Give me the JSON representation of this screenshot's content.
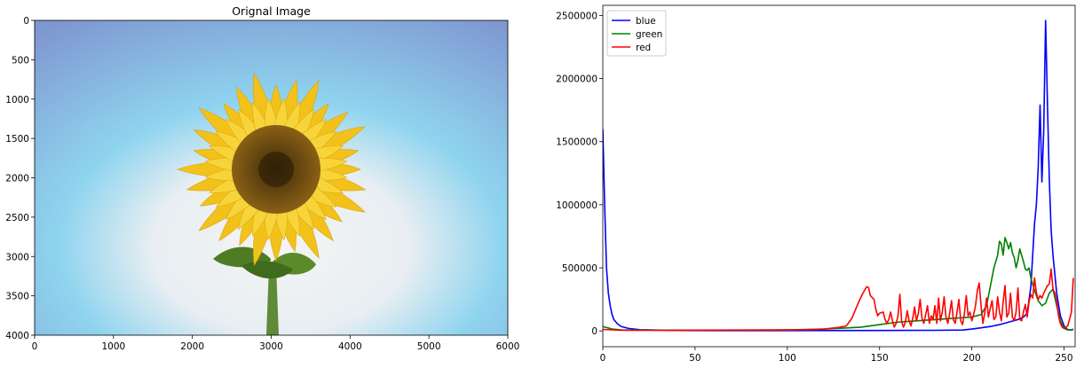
{
  "figure": {
    "background": "#ffffff"
  },
  "chart_data": [
    {
      "type": "image",
      "title": "Orignal Image",
      "xlabel": "",
      "ylabel": "",
      "xlim": [
        0,
        6000
      ],
      "ylim": [
        4000,
        0
      ],
      "x_ticks": [
        0,
        1000,
        2000,
        3000,
        4000,
        5000,
        6000
      ],
      "y_ticks": [
        0,
        500,
        1000,
        1500,
        2000,
        2500,
        3000,
        3500,
        4000
      ],
      "image_content": {
        "sky_top": "#7f97d0",
        "sky_mid": "#8fd4ef",
        "sky_bottom": "#f4f4f4",
        "petal_color": "#f2c21b",
        "disc_color": "#6b4a12",
        "leaf_color": "#5a8a2a"
      }
    },
    {
      "type": "line",
      "title": "",
      "xlabel": "",
      "ylabel": "",
      "xlim": [
        0,
        256
      ],
      "ylim": [
        -125000,
        2580000
      ],
      "x_ticks": [
        0,
        50,
        100,
        150,
        200,
        250
      ],
      "y_ticks": [
        0,
        500000,
        1000000,
        1500000,
        2000000,
        2500000
      ],
      "legend": {
        "placement": "top-left"
      },
      "series": [
        {
          "name": "blue",
          "color": "#0000ff",
          "points": [
            [
              0,
              1600000
            ],
            [
              1,
              1000000
            ],
            [
              2,
              500000
            ],
            [
              3,
              300000
            ],
            [
              4,
              200000
            ],
            [
              5,
              130000
            ],
            [
              6,
              90000
            ],
            [
              8,
              55000
            ],
            [
              10,
              35000
            ],
            [
              14,
              20000
            ],
            [
              20,
              10000
            ],
            [
              40,
              4000
            ],
            [
              60,
              3000
            ],
            [
              100,
              3000
            ],
            [
              150,
              4000
            ],
            [
              180,
              5000
            ],
            [
              195,
              7000
            ],
            [
              200,
              15000
            ],
            [
              205,
              25000
            ],
            [
              210,
              35000
            ],
            [
              215,
              50000
            ],
            [
              220,
              70000
            ],
            [
              225,
              90000
            ],
            [
              228,
              110000
            ],
            [
              230,
              140000
            ],
            [
              232,
              350000
            ],
            [
              233,
              600000
            ],
            [
              234,
              850000
            ],
            [
              235,
              1000000
            ],
            [
              236,
              1300000
            ],
            [
              237,
              1790000
            ],
            [
              238,
              1180000
            ],
            [
              239,
              1600000
            ],
            [
              240,
              2460000
            ],
            [
              241,
              1800000
            ],
            [
              242,
              1200000
            ],
            [
              243,
              800000
            ],
            [
              244,
              600000
            ],
            [
              246,
              300000
            ],
            [
              248,
              120000
            ],
            [
              250,
              40000
            ],
            [
              252,
              10000
            ],
            [
              254,
              8000
            ],
            [
              255,
              15000
            ]
          ]
        },
        {
          "name": "green",
          "color": "#008000",
          "points": [
            [
              0,
              35000
            ],
            [
              5,
              15000
            ],
            [
              10,
              8000
            ],
            [
              20,
              6000
            ],
            [
              50,
              6000
            ],
            [
              100,
              8000
            ],
            [
              120,
              15000
            ],
            [
              130,
              22000
            ],
            [
              140,
              30000
            ],
            [
              150,
              50000
            ],
            [
              160,
              70000
            ],
            [
              170,
              80000
            ],
            [
              180,
              90000
            ],
            [
              190,
              100000
            ],
            [
              200,
              110000
            ],
            [
              205,
              130000
            ],
            [
              208,
              200000
            ],
            [
              210,
              350000
            ],
            [
              212,
              500000
            ],
            [
              214,
              600000
            ],
            [
              215,
              710000
            ],
            [
              216,
              690000
            ],
            [
              217,
              600000
            ],
            [
              218,
              740000
            ],
            [
              219,
              700000
            ],
            [
              220,
              650000
            ],
            [
              221,
              700000
            ],
            [
              222,
              620000
            ],
            [
              223,
              580000
            ],
            [
              224,
              500000
            ],
            [
              225,
              560000
            ],
            [
              226,
              650000
            ],
            [
              227,
              600000
            ],
            [
              228,
              550000
            ],
            [
              229,
              490000
            ],
            [
              230,
              480000
            ],
            [
              231,
              500000
            ],
            [
              232,
              420000
            ],
            [
              234,
              320000
            ],
            [
              236,
              240000
            ],
            [
              238,
              200000
            ],
            [
              240,
              220000
            ],
            [
              242,
              300000
            ],
            [
              244,
              330000
            ],
            [
              246,
              200000
            ],
            [
              248,
              80000
            ],
            [
              250,
              20000
            ],
            [
              252,
              8000
            ],
            [
              255,
              10000
            ]
          ]
        },
        {
          "name": "red",
          "color": "#ff0000",
          "points": [
            [
              0,
              12000
            ],
            [
              10,
              5000
            ],
            [
              30,
              5000
            ],
            [
              60,
              6000
            ],
            [
              90,
              7000
            ],
            [
              110,
              10000
            ],
            [
              120,
              15000
            ],
            [
              128,
              28000
            ],
            [
              132,
              40000
            ],
            [
              135,
              100000
            ],
            [
              137,
              170000
            ],
            [
              139,
              240000
            ],
            [
              141,
              300000
            ],
            [
              143,
              350000
            ],
            [
              144,
              345000
            ],
            [
              145,
              280000
            ],
            [
              147,
              250000
            ],
            [
              148,
              170000
            ],
            [
              149,
              120000
            ],
            [
              150,
              140000
            ],
            [
              152,
              150000
            ],
            [
              153,
              90000
            ],
            [
              154,
              60000
            ],
            [
              155,
              90000
            ],
            [
              156,
              150000
            ],
            [
              157,
              80000
            ],
            [
              158,
              30000
            ],
            [
              159,
              60000
            ],
            [
              160,
              120000
            ],
            [
              161,
              290000
            ],
            [
              162,
              70000
            ],
            [
              163,
              30000
            ],
            [
              164,
              70000
            ],
            [
              165,
              160000
            ],
            [
              166,
              80000
            ],
            [
              167,
              40000
            ],
            [
              168,
              100000
            ],
            [
              169,
              190000
            ],
            [
              170,
              80000
            ],
            [
              171,
              140000
            ],
            [
              172,
              250000
            ],
            [
              173,
              100000
            ],
            [
              174,
              60000
            ],
            [
              175,
              130000
            ],
            [
              176,
              200000
            ],
            [
              177,
              60000
            ],
            [
              178,
              120000
            ],
            [
              179,
              90000
            ],
            [
              180,
              200000
            ],
            [
              181,
              60000
            ],
            [
              182,
              260000
            ],
            [
              183,
              80000
            ],
            [
              184,
              150000
            ],
            [
              185,
              270000
            ],
            [
              186,
              110000
            ],
            [
              187,
              60000
            ],
            [
              188,
              140000
            ],
            [
              189,
              240000
            ],
            [
              190,
              90000
            ],
            [
              191,
              60000
            ],
            [
              192,
              150000
            ],
            [
              193,
              250000
            ],
            [
              194,
              80000
            ],
            [
              195,
              50000
            ],
            [
              196,
              140000
            ],
            [
              197,
              280000
            ],
            [
              198,
              120000
            ],
            [
              199,
              150000
            ],
            [
              200,
              80000
            ],
            [
              201,
              130000
            ],
            [
              202,
              200000
            ],
            [
              203,
              320000
            ],
            [
              204,
              380000
            ],
            [
              205,
              200000
            ],
            [
              206,
              60000
            ],
            [
              207,
              140000
            ],
            [
              208,
              260000
            ],
            [
              209,
              110000
            ],
            [
              210,
              180000
            ],
            [
              211,
              240000
            ],
            [
              212,
              90000
            ],
            [
              213,
              110000
            ],
            [
              214,
              270000
            ],
            [
              215,
              150000
            ],
            [
              216,
              80000
            ],
            [
              217,
              230000
            ],
            [
              218,
              360000
            ],
            [
              219,
              110000
            ],
            [
              220,
              140000
            ],
            [
              221,
              300000
            ],
            [
              222,
              110000
            ],
            [
              223,
              80000
            ],
            [
              224,
              150000
            ],
            [
              225,
              340000
            ],
            [
              226,
              90000
            ],
            [
              227,
              80000
            ],
            [
              228,
              150000
            ],
            [
              229,
              210000
            ],
            [
              230,
              110000
            ],
            [
              231,
              230000
            ],
            [
              232,
              290000
            ],
            [
              233,
              260000
            ],
            [
              234,
              420000
            ],
            [
              235,
              300000
            ],
            [
              236,
              250000
            ],
            [
              237,
              280000
            ],
            [
              238,
              260000
            ],
            [
              239,
              300000
            ],
            [
              240,
              330000
            ],
            [
              241,
              360000
            ],
            [
              242,
              370000
            ],
            [
              243,
              490000
            ],
            [
              244,
              330000
            ],
            [
              245,
              300000
            ],
            [
              246,
              230000
            ],
            [
              247,
              120000
            ],
            [
              248,
              60000
            ],
            [
              249,
              30000
            ],
            [
              250,
              20000
            ],
            [
              252,
              40000
            ],
            [
              254,
              150000
            ],
            [
              255,
              420000
            ]
          ]
        }
      ]
    }
  ]
}
